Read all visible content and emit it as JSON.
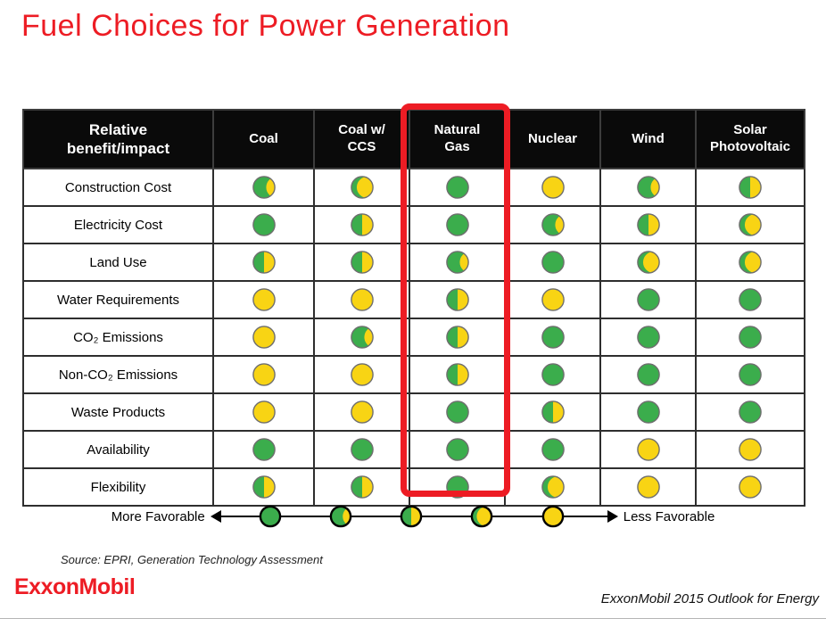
{
  "slide": {
    "title": "Fuel Choices for Power Generation",
    "source_note": "Source:  EPRI, Generation Technology Assessment",
    "logo_text": "ExxonMobil",
    "footer_text": "ExxonMobil 2015 Outlook for Energy"
  },
  "colors": {
    "accent_red": "#ED1C24",
    "green": "#3BAD4C",
    "yellow": "#F8D414",
    "table_circle_outline": "#6e6e6e",
    "legend_circle_outline": "#000000",
    "header_bg": "#0a0a0a",
    "header_text": "#ffffff"
  },
  "legend": {
    "left_label": "More Favorable",
    "right_label": "Less Favorable",
    "levels_percent_green": [
      100,
      75,
      50,
      25,
      0
    ]
  },
  "chart_data": {
    "type": "table",
    "title": "Fuel Choices for Power Generation",
    "corner_header": "Relative\nbenefit/impact",
    "columns": [
      "Coal",
      "Coal w/\nCCS",
      "Natural\nGas",
      "Nuclear",
      "Wind",
      "Solar\nPhotovoltaic"
    ],
    "highlighted_column": "Natural Gas",
    "rows": [
      "Construction Cost",
      "Electricity Cost",
      "Land Use",
      "Water Requirements",
      "CO₂ Emissions",
      "Non-CO₂ Emissions",
      "Waste Products",
      "Availability",
      "Flexibility"
    ],
    "values_percent_favorable": [
      [
        75,
        25,
        100,
        0,
        75,
        50
      ],
      [
        100,
        50,
        100,
        75,
        50,
        25
      ],
      [
        50,
        50,
        75,
        100,
        25,
        25
      ],
      [
        0,
        0,
        50,
        0,
        100,
        100
      ],
      [
        0,
        75,
        50,
        100,
        100,
        100
      ],
      [
        0,
        0,
        50,
        100,
        100,
        100
      ],
      [
        0,
        0,
        100,
        50,
        100,
        100
      ],
      [
        100,
        100,
        100,
        100,
        0,
        0
      ],
      [
        50,
        50,
        100,
        25,
        0,
        0
      ]
    ],
    "scale_meaning": {
      "100": "More Favorable (full green)",
      "0": "Less Favorable (full yellow)"
    }
  }
}
